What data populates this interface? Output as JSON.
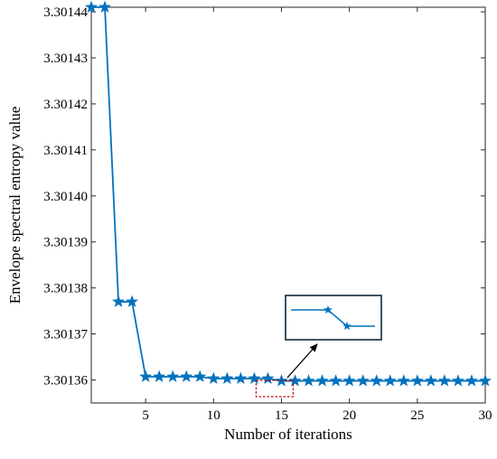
{
  "chart_data": {
    "type": "line",
    "title": "",
    "xlabel": "Number of iterations",
    "ylabel": "Envelope spectral entropy value",
    "xlim": [
      1,
      30
    ],
    "ylim": [
      3.301355,
      3.301441
    ],
    "x_ticks": [
      5,
      10,
      15,
      20,
      25,
      30
    ],
    "x_tick_labels": [
      "5",
      "10",
      "15",
      "20",
      "25",
      "30"
    ],
    "y_ticks": [
      3.30136,
      3.30137,
      3.30138,
      3.30139,
      3.3014,
      3.30141,
      3.30142,
      3.30143,
      3.30144
    ],
    "y_tick_labels": [
      "3.30136",
      "3.30137",
      "3.30138",
      "3.30139",
      "3.30140",
      "3.30141",
      "3.30142",
      "3.30143",
      "3.30144"
    ],
    "grid": false,
    "series": [
      {
        "marker": "star",
        "color": "#0072BD",
        "x": [
          1,
          2,
          3,
          4,
          5,
          6,
          7,
          8,
          9,
          10,
          11,
          12,
          13,
          14,
          15,
          16,
          17,
          18,
          19,
          20,
          21,
          22,
          23,
          24,
          25,
          26,
          27,
          28,
          29,
          30
        ],
        "y": [
          3.301441,
          3.301441,
          3.301377,
          3.301377,
          3.3013607,
          3.3013607,
          3.3013607,
          3.3013607,
          3.3013607,
          3.3013603,
          3.3013603,
          3.3013603,
          3.3013603,
          3.3013603,
          3.3013598,
          3.3013598,
          3.3013598,
          3.3013598,
          3.3013598,
          3.3013598,
          3.3013598,
          3.3013598,
          3.3013598,
          3.3013598,
          3.3013598,
          3.3013598,
          3.3013598,
          3.3013598,
          3.3013598,
          3.3013598
        ]
      }
    ],
    "annotation": {
      "type": "zoom-inset",
      "highlight_x": [
        14,
        15
      ],
      "box_color": "#c00000",
      "inset_border_color": "#0d2a3a"
    }
  }
}
